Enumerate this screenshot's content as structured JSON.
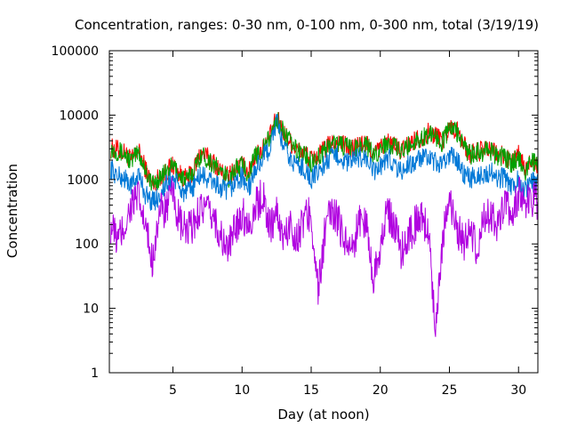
{
  "chart_data": {
    "type": "line",
    "title": "Concentration, ranges: 0-30 nm, 0-100 nm, 0-300 nm, total (3/19/19)",
    "xlabel": "Day (at noon)",
    "ylabel": "Concentration",
    "xlim": [
      0.4,
      31.4
    ],
    "ylim": [
      1,
      100000
    ],
    "yscale": "log",
    "grid": false,
    "legend": "none",
    "x_ticks": [
      5,
      10,
      15,
      20,
      25,
      30
    ],
    "x_tick_labels": [
      "5",
      "10",
      "15",
      "20",
      "25",
      "30"
    ],
    "y_ticks": [
      1,
      10,
      100,
      1000,
      10000,
      100000
    ],
    "y_tick_labels": [
      "1",
      "10",
      "100",
      "1000",
      "10000",
      "100000"
    ],
    "x": [
      0.5,
      1.0,
      1.5,
      2.0,
      2.5,
      3.0,
      3.5,
      4.0,
      4.5,
      5.0,
      5.5,
      6.0,
      6.5,
      7.0,
      7.5,
      8.0,
      8.5,
      9.0,
      9.5,
      10.0,
      10.5,
      11.0,
      11.5,
      12.0,
      12.5,
      13.0,
      13.5,
      14.0,
      14.5,
      15.0,
      15.5,
      16.0,
      16.5,
      17.0,
      17.5,
      18.0,
      18.5,
      19.0,
      19.5,
      20.0,
      20.5,
      21.0,
      21.5,
      22.0,
      22.5,
      23.0,
      23.5,
      24.0,
      24.5,
      25.0,
      25.5,
      26.0,
      26.5,
      27.0,
      27.5,
      28.0,
      28.5,
      29.0,
      29.5,
      30.0,
      30.5,
      31.0,
      31.4
    ],
    "series": [
      {
        "color": "#ff0000",
        "values": [
          3100,
          2900,
          2600,
          2000,
          2800,
          1500,
          850,
          1100,
          1300,
          1700,
          1200,
          1000,
          1400,
          2600,
          2200,
          1800,
          1300,
          1100,
          1500,
          1700,
          1300,
          2500,
          3000,
          4500,
          9000,
          5500,
          3800,
          2800,
          2600,
          2000,
          2300,
          3000,
          3700,
          3800,
          3300,
          3000,
          3600,
          3500,
          2500,
          3100,
          3900,
          3300,
          2700,
          3400,
          4200,
          4500,
          5400,
          5000,
          4000,
          6500,
          6000,
          3600,
          2500,
          2700,
          2800,
          2900,
          2400,
          2300,
          1800,
          2400,
          1400,
          2100,
          1700
        ]
      },
      {
        "color": "#00a000",
        "values": [
          3000,
          2800,
          2500,
          1900,
          2700,
          1450,
          820,
          1050,
          1250,
          1650,
          1150,
          950,
          1350,
          2500,
          2100,
          1700,
          1250,
          1050,
          1450,
          1650,
          1250,
          2400,
          2900,
          4300,
          8700,
          5300,
          3700,
          2700,
          2500,
          1900,
          2200,
          2900,
          3600,
          3700,
          3200,
          2900,
          3500,
          3400,
          2400,
          3000,
          3800,
          3200,
          2600,
          3300,
          4000,
          4300,
          5200,
          4800,
          3800,
          6300,
          5800,
          3500,
          2400,
          2600,
          2700,
          2800,
          2300,
          2200,
          1700,
          2300,
          1350,
          2000,
          1600
        ]
      },
      {
        "color": "#0078d7",
        "values": [
          1500,
          1100,
          1050,
          800,
          1200,
          600,
          450,
          550,
          800,
          1100,
          700,
          600,
          800,
          1200,
          1000,
          900,
          700,
          650,
          900,
          1100,
          700,
          1500,
          2200,
          3000,
          8000,
          3200,
          2000,
          1700,
          1500,
          1000,
          1300,
          1800,
          2200,
          2400,
          1800,
          1900,
          2300,
          2100,
          1300,
          1600,
          2200,
          1800,
          1300,
          1700,
          1800,
          2200,
          2000,
          1800,
          1600,
          2500,
          2100,
          1300,
          1000,
          1200,
          1200,
          1300,
          1000,
          1100,
          800,
          1000,
          700,
          900,
          900
        ]
      },
      {
        "color": "#b000e0",
        "values": [
          200,
          110,
          180,
          420,
          500,
          180,
          55,
          300,
          350,
          600,
          200,
          150,
          200,
          400,
          300,
          250,
          120,
          80,
          180,
          300,
          200,
          380,
          600,
          180,
          300,
          120,
          200,
          120,
          250,
          300,
          18,
          150,
          350,
          200,
          120,
          80,
          250,
          200,
          30,
          100,
          300,
          200,
          80,
          120,
          200,
          250,
          150,
          5,
          120,
          400,
          200,
          100,
          150,
          80,
          250,
          300,
          200,
          350,
          300,
          600,
          400,
          500,
          450
        ]
      }
    ]
  }
}
